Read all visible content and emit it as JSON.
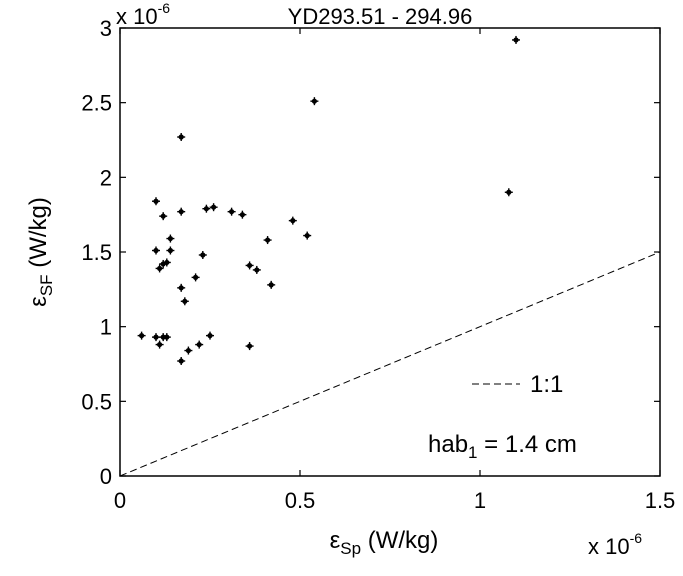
{
  "chart_data": {
    "type": "scatter",
    "title": "YD293.51 - 294.96",
    "xlabel": {
      "symbol": "ε",
      "subscript": "Sp",
      "unit": " (W/kg)"
    },
    "ylabel": {
      "symbol": "ε",
      "subscript": "SF",
      "unit": " (W/kg)"
    },
    "x_multiplier": {
      "base": "x 10",
      "exponent": "-6"
    },
    "y_multiplier": {
      "base": "x 10",
      "exponent": "-6"
    },
    "xlim": [
      0,
      1.5
    ],
    "ylim": [
      0,
      3
    ],
    "x_ticks": [
      0,
      0.5,
      1,
      1.5
    ],
    "x_tick_labels": [
      "0",
      "0.5",
      "1",
      "1.5"
    ],
    "y_ticks": [
      0,
      0.5,
      1,
      1.5,
      2,
      2.5,
      3
    ],
    "y_tick_labels": [
      "0",
      "0.5",
      "1",
      "1.5",
      "2",
      "2.5",
      "3"
    ],
    "grid": false,
    "reference_line": {
      "label": "1:1",
      "x": [
        0,
        1.5
      ],
      "y": [
        0,
        1.5
      ],
      "style": "dashed"
    },
    "annotation": {
      "text": "hab",
      "subscript": "1",
      "suffix": " = 1.4 cm"
    },
    "points": [
      {
        "x": 0.06,
        "y": 0.94
      },
      {
        "x": 0.1,
        "y": 1.84
      },
      {
        "x": 0.1,
        "y": 1.51
      },
      {
        "x": 0.1,
        "y": 0.93
      },
      {
        "x": 0.11,
        "y": 1.39
      },
      {
        "x": 0.11,
        "y": 0.88
      },
      {
        "x": 0.12,
        "y": 1.74
      },
      {
        "x": 0.12,
        "y": 1.42
      },
      {
        "x": 0.12,
        "y": 0.93
      },
      {
        "x": 0.13,
        "y": 1.43
      },
      {
        "x": 0.13,
        "y": 0.93
      },
      {
        "x": 0.14,
        "y": 1.51
      },
      {
        "x": 0.14,
        "y": 1.59
      },
      {
        "x": 0.17,
        "y": 2.27
      },
      {
        "x": 0.17,
        "y": 1.77
      },
      {
        "x": 0.17,
        "y": 1.26
      },
      {
        "x": 0.17,
        "y": 0.77
      },
      {
        "x": 0.18,
        "y": 1.17
      },
      {
        "x": 0.19,
        "y": 0.84
      },
      {
        "x": 0.21,
        "y": 1.33
      },
      {
        "x": 0.22,
        "y": 0.88
      },
      {
        "x": 0.23,
        "y": 1.48
      },
      {
        "x": 0.24,
        "y": 1.79
      },
      {
        "x": 0.25,
        "y": 0.94
      },
      {
        "x": 0.26,
        "y": 1.8
      },
      {
        "x": 0.31,
        "y": 1.77
      },
      {
        "x": 0.34,
        "y": 1.75
      },
      {
        "x": 0.36,
        "y": 1.41
      },
      {
        "x": 0.36,
        "y": 0.87
      },
      {
        "x": 0.38,
        "y": 1.38
      },
      {
        "x": 0.41,
        "y": 1.58
      },
      {
        "x": 0.42,
        "y": 1.28
      },
      {
        "x": 0.48,
        "y": 1.71
      },
      {
        "x": 0.52,
        "y": 1.61
      },
      {
        "x": 0.54,
        "y": 2.51
      },
      {
        "x": 1.08,
        "y": 1.9
      },
      {
        "x": 1.1,
        "y": 2.92
      }
    ]
  }
}
